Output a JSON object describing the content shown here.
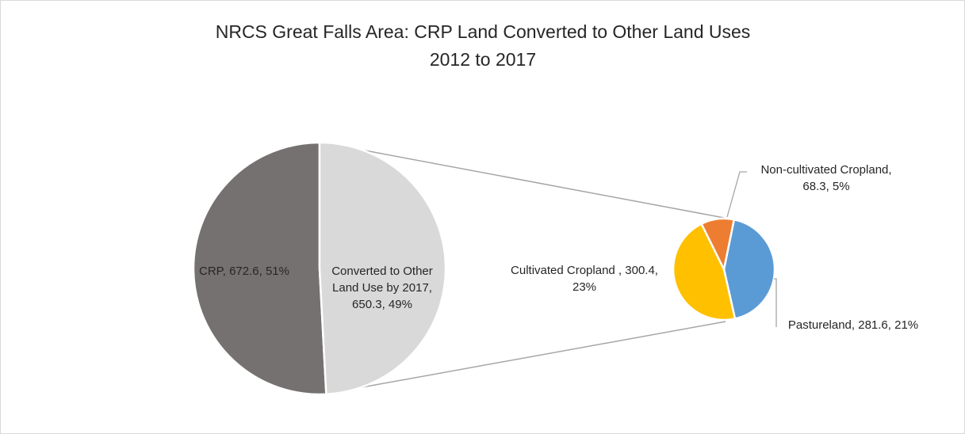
{
  "chart_data": {
    "type": "pie",
    "subtype": "pie-of-pie",
    "title": "NRCS Great Falls Area: CRP Land Converted to Other Land Uses",
    "subtitle": "2012 to 2017",
    "primary": {
      "slices": [
        {
          "label_lines": [
            "CRP, 672.6, 51%"
          ],
          "value": 672.6,
          "percent": 51,
          "color": "#767171"
        },
        {
          "label_lines": [
            "Converted to Other",
            "Land Use by 2017,",
            "650.3, 49%"
          ],
          "value": 650.3,
          "percent": 49,
          "color": "#d9d9d9"
        }
      ]
    },
    "secondary": {
      "slices": [
        {
          "label_lines": [
            "Pastureland, 281.6, 21%"
          ],
          "value": 281.6,
          "percent": 21,
          "color": "#5b9bd5"
        },
        {
          "label_lines": [
            "Cultivated Cropland , 300.4,",
            "23%"
          ],
          "value": 300.4,
          "percent": 23,
          "color": "#ffc000"
        },
        {
          "label_lines": [
            "Non-cultivated Cropland,",
            "68.3, 5%"
          ],
          "value": 68.3,
          "percent": 5,
          "color": "#ed7d31"
        }
      ]
    },
    "legend": "none",
    "connector_color": "#a6a6a6"
  }
}
